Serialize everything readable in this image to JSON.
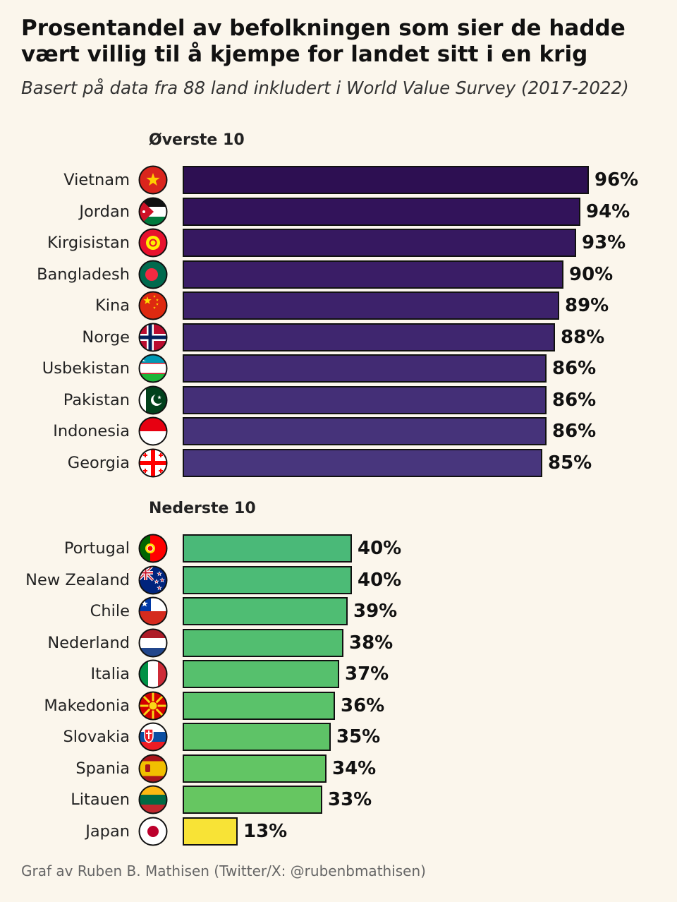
{
  "chart_data": {
    "type": "bar",
    "orientation": "horizontal",
    "title": "Prosentandel av befolkningen som sier de hadde vært villig til å kjempe for landet sitt i en krig",
    "subtitle": "Basert på data fra 88 land inkludert i World Value Survey (2017-2022)",
    "unit": "%",
    "xlim": [
      0,
      100
    ],
    "grid": false,
    "groups": [
      {
        "name": "Øverste 10",
        "items": [
          {
            "country": "Vietnam",
            "value": 96,
            "label": "96%",
            "color": "#2d0f52",
            "flag": "vietnam-flag-icon"
          },
          {
            "country": "Jordan",
            "value": 94,
            "label": "94%",
            "color": "#32135a",
            "flag": "jordan-flag-icon"
          },
          {
            "country": "Kirgisistan",
            "value": 93,
            "label": "93%",
            "color": "#361860",
            "flag": "kyrgyzstan-flag-icon"
          },
          {
            "country": "Bangladesh",
            "value": 90,
            "label": "90%",
            "color": "#3a1d66",
            "flag": "bangladesh-flag-icon"
          },
          {
            "country": "Kina",
            "value": 89,
            "label": "89%",
            "color": "#3d226b",
            "flag": "china-flag-icon"
          },
          {
            "country": "Norge",
            "value": 88,
            "label": "88%",
            "color": "#3f266f",
            "flag": "norway-flag-icon"
          },
          {
            "country": "Usbekistan",
            "value": 86,
            "label": "86%",
            "color": "#422b73",
            "flag": "uzbekistan-flag-icon"
          },
          {
            "country": "Pakistan",
            "value": 86,
            "label": "86%",
            "color": "#442f77",
            "flag": "pakistan-flag-icon"
          },
          {
            "country": "Indonesia",
            "value": 86,
            "label": "86%",
            "color": "#46337a",
            "flag": "indonesia-flag-icon"
          },
          {
            "country": "Georgia",
            "value": 85,
            "label": "85%",
            "color": "#48367d",
            "flag": "georgia-flag-icon"
          }
        ]
      },
      {
        "name": "Nederste 10",
        "items": [
          {
            "country": "Portugal",
            "value": 40,
            "label": "40%",
            "color": "#4ab978",
            "flag": "portugal-flag-icon"
          },
          {
            "country": "New Zealand",
            "value": 40,
            "label": "40%",
            "color": "#4cbb76",
            "flag": "new-zealand-flag-icon"
          },
          {
            "country": "Chile",
            "value": 39,
            "label": "39%",
            "color": "#4fbd73",
            "flag": "chile-flag-icon"
          },
          {
            "country": "Nederland",
            "value": 38,
            "label": "38%",
            "color": "#52be70",
            "flag": "netherlands-flag-icon"
          },
          {
            "country": "Italia",
            "value": 37,
            "label": "37%",
            "color": "#56c06d",
            "flag": "italy-flag-icon"
          },
          {
            "country": "Makedonia",
            "value": 36,
            "label": "36%",
            "color": "#5ac26a",
            "flag": "macedonia-flag-icon"
          },
          {
            "country": "Slovakia",
            "value": 35,
            "label": "35%",
            "color": "#5ec367",
            "flag": "slovakia-flag-icon"
          },
          {
            "country": "Spania",
            "value": 34,
            "label": "34%",
            "color": "#62c564",
            "flag": "spain-flag-icon"
          },
          {
            "country": "Litauen",
            "value": 33,
            "label": "33%",
            "color": "#66c661",
            "flag": "lithuania-flag-icon"
          },
          {
            "country": "Japan",
            "value": 13,
            "label": "13%",
            "color": "#f8e336",
            "flag": "japan-flag-icon"
          }
        ]
      }
    ]
  },
  "footer": "Graf av Ruben B. Mathisen (Twitter/X: @rubenbmathisen)"
}
